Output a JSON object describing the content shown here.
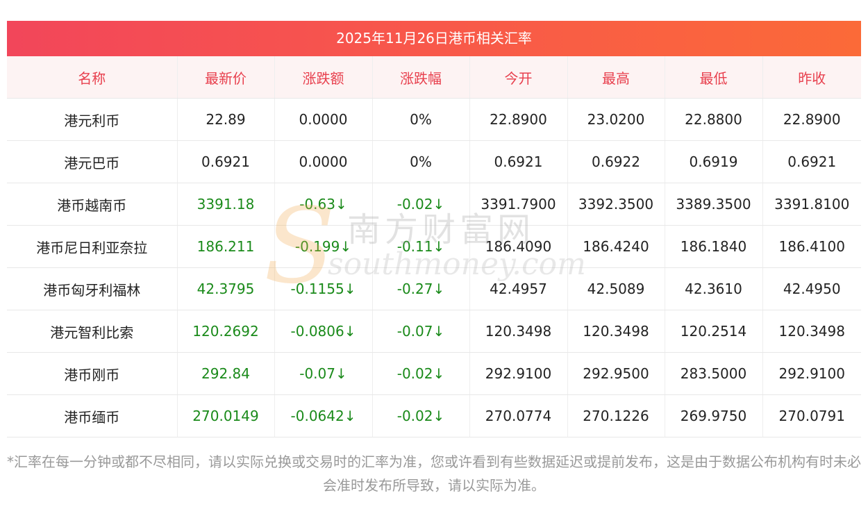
{
  "title": "2025年11月26日港币相关汇率",
  "headers": [
    "名称",
    "最新价",
    "涨跌额",
    "涨跌幅",
    "今开",
    "最高",
    "最低",
    "昨收"
  ],
  "rows": [
    {
      "name": "港元利币",
      "latest": "22.89",
      "change": "0.0000",
      "pct": "0%",
      "open": "22.8900",
      "high": "23.0200",
      "low": "22.8800",
      "prev": "22.8900",
      "dir": "flat"
    },
    {
      "name": "港元巴币",
      "latest": "0.6921",
      "change": "0.0000",
      "pct": "0%",
      "open": "0.6921",
      "high": "0.6922",
      "low": "0.6919",
      "prev": "0.6921",
      "dir": "flat"
    },
    {
      "name": "港币越南币",
      "latest": "3391.18",
      "change": "-0.63↓",
      "pct": "-0.02↓",
      "open": "3391.7900",
      "high": "3392.3500",
      "low": "3389.3500",
      "prev": "3391.8100",
      "dir": "neg"
    },
    {
      "name": "港币尼日利亚奈拉",
      "latest": "186.211",
      "change": "-0.199↓",
      "pct": "-0.11↓",
      "open": "186.4090",
      "high": "186.4240",
      "low": "186.1840",
      "prev": "186.4100",
      "dir": "neg"
    },
    {
      "name": "港币匈牙利福林",
      "latest": "42.3795",
      "change": "-0.1155↓",
      "pct": "-0.27↓",
      "open": "42.4957",
      "high": "42.5089",
      "low": "42.3610",
      "prev": "42.4950",
      "dir": "neg"
    },
    {
      "name": "港元智利比索",
      "latest": "120.2692",
      "change": "-0.0806↓",
      "pct": "-0.07↓",
      "open": "120.3498",
      "high": "120.3498",
      "low": "120.2514",
      "prev": "120.3498",
      "dir": "neg"
    },
    {
      "name": "港币刚币",
      "latest": "292.84",
      "change": "-0.07↓",
      "pct": "-0.02↓",
      "open": "292.9100",
      "high": "292.9500",
      "low": "283.5000",
      "prev": "292.9100",
      "dir": "neg"
    },
    {
      "name": "港币缅币",
      "latest": "270.0149",
      "change": "-0.0642↓",
      "pct": "-0.02↓",
      "open": "270.0774",
      "high": "270.1226",
      "low": "269.9750",
      "prev": "270.0791",
      "dir": "neg"
    }
  ],
  "watermark": {
    "cn": "南方财富网",
    "en": "southmoney.com",
    "s": "S"
  },
  "footnote": "*汇率在每一分钟或都不尽相同，请以实际兑换或交易时的汇率为准，您或许看到有些数据延迟或提前发布，这是由于数据公布机构有时未必会准时发布所导致，请以实际为准。",
  "colors": {
    "header_red": "#e8404e",
    "gradient_start": "#f2465a",
    "gradient_end": "#fb6a38",
    "down_green": "#1a8a1a"
  }
}
